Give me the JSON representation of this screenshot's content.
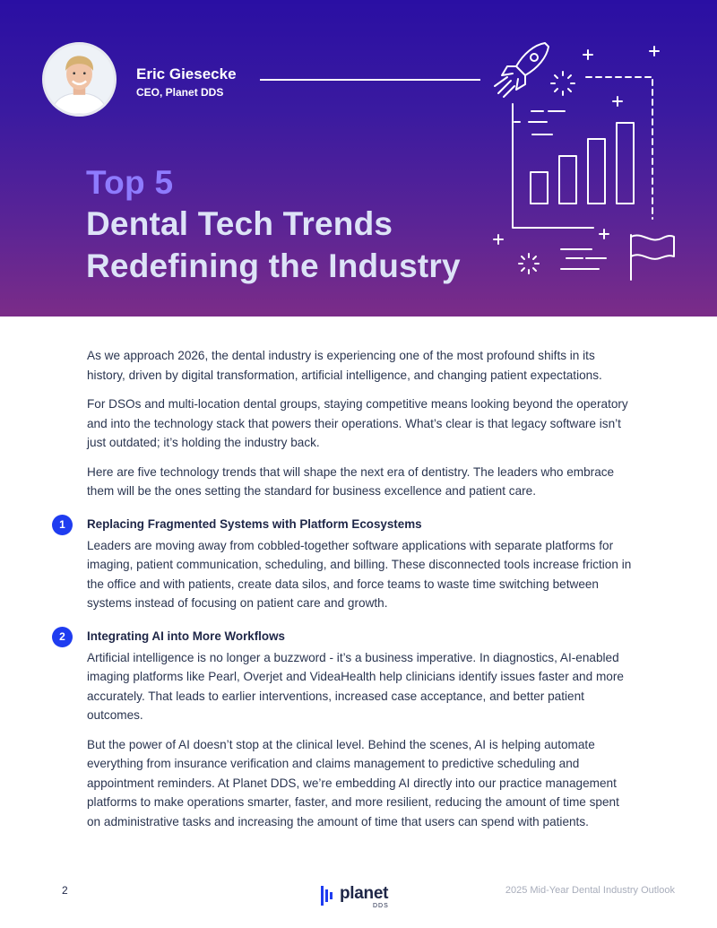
{
  "hero": {
    "author_name": "Eric Giesecke",
    "author_role": "CEO, Planet DDS",
    "title_accent": "Top 5",
    "title_line1": "Dental Tech Trends",
    "title_line2": "Redefining the Industry"
  },
  "intro": [
    "As we approach 2026, the dental industry is experiencing one of the most profound shifts in its history, driven by digital transformation, artificial intelligence, and changing patient expectations.",
    "For DSOs and multi-location dental groups, staying competitive means looking beyond the operatory and into the technology stack that powers their operations. What’s clear is that legacy software isn’t just outdated; it’s holding the industry back.",
    "Here are five technology trends that will shape the next era of dentistry. The leaders who embrace them will be the ones setting the standard for business excellence and patient care."
  ],
  "sections": [
    {
      "number": "1",
      "heading": "Replacing Fragmented Systems with Platform Ecosystems",
      "paragraphs": [
        "Leaders are moving away from cobbled-together software applications with separate platforms for imaging, patient communication, scheduling, and billing. These disconnected tools increase friction in the office and with patients, create data silos, and force teams to waste time switching between systems instead of focusing on patient care and growth."
      ]
    },
    {
      "number": "2",
      "heading": "Integrating AI into More Workflows",
      "paragraphs": [
        "Artificial intelligence is no longer a buzzword - it’s a business imperative. In diagnostics, AI-enabled imaging platforms like Pearl, Overjet and VideaHealth help clinicians identify issues faster and more accurately. That leads to earlier interventions, increased case acceptance, and better patient outcomes.",
        "But the power of AI doesn’t stop at the clinical level. Behind the scenes, AI is helping automate everything from insurance verification and claims management to predictive scheduling and appointment reminders. At Planet DDS, we’re embedding AI directly into our practice management platforms to make operations smarter, faster, and more resilient, reducing the amount of time spent on administrative tasks and increasing the amount of time that users can spend with patients."
      ]
    }
  ],
  "footer": {
    "page_number": "2",
    "logo_word": "planet",
    "logo_sub": "DDS",
    "publication": "2025 Mid-Year Dental Industry Outlook"
  },
  "colors": {
    "hero_top": "#2a0fa3",
    "hero_bottom": "#7b2c88",
    "accent_title": "#8e7bff",
    "badge": "#1f3cf0"
  },
  "icons": [
    "author-photo",
    "rocket-icon",
    "bar-chart-icon",
    "flag-icon",
    "sparkle-icon",
    "planet-logo-icon"
  ]
}
